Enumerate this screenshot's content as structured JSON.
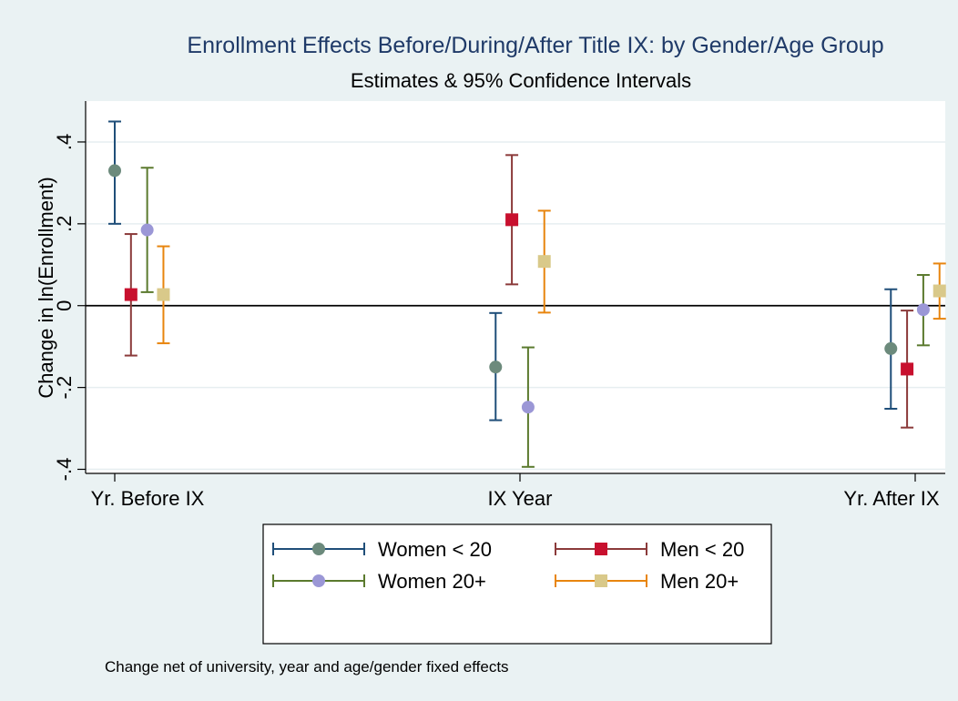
{
  "chart_data": {
    "type": "scatter",
    "title": "Enrollment Effects Before/During/After Title IX: by Gender/Age Group",
    "subtitle": "Estimates & 95% Confidence Intervals",
    "xlabel": "",
    "ylabel": "Change in ln(Enrollment)",
    "note": "Change net of university, year and age/gender fixed effects",
    "categories": [
      "Yr. Before IX",
      "IX Year",
      "Yr. After IX"
    ],
    "ylim": [
      -0.41,
      0.5
    ],
    "yticks": [
      {
        "value": 0.4,
        "label": ".4"
      },
      {
        "value": 0.2,
        "label": ".2"
      },
      {
        "value": 0,
        "label": "0"
      },
      {
        "value": -0.2,
        "label": "-.2"
      },
      {
        "value": -0.4,
        "label": "-.4"
      }
    ],
    "grid": true,
    "reference_line": 0,
    "legend_position": "bottom",
    "series": [
      {
        "name": "Women < 20",
        "marker": "circle",
        "color": "#6c8a7c",
        "bar_color": "#1f4e79",
        "offset": -0.33,
        "estimate": [
          0.33,
          -0.15,
          -0.105
        ],
        "lower": [
          0.2,
          -0.28,
          -0.252
        ],
        "upper": [
          0.45,
          -0.018,
          0.04
        ]
      },
      {
        "name": "Men < 20",
        "marker": "square",
        "color": "#c8102e",
        "bar_color": "#8b3a3a",
        "offset": -0.11,
        "estimate": [
          0.027,
          0.21,
          -0.155
        ],
        "lower": [
          -0.122,
          0.052,
          -0.298
        ],
        "upper": [
          0.175,
          0.368,
          -0.012
        ]
      },
      {
        "name": "Women 20+",
        "marker": "circle",
        "color": "#9b97d6",
        "bar_color": "#5b7a2e",
        "offset": 0.11,
        "estimate": [
          0.185,
          -0.248,
          -0.01
        ],
        "lower": [
          0.033,
          -0.394,
          -0.097
        ],
        "upper": [
          0.337,
          -0.102,
          0.075
        ]
      },
      {
        "name": "Men 20+",
        "marker": "square",
        "color": "#d9c98a",
        "bar_color": "#e8850e",
        "offset": 0.33,
        "estimate": [
          0.027,
          0.108,
          0.036
        ],
        "lower": [
          -0.092,
          -0.017,
          -0.032
        ],
        "upper": [
          0.145,
          0.232,
          0.103
        ]
      }
    ]
  }
}
